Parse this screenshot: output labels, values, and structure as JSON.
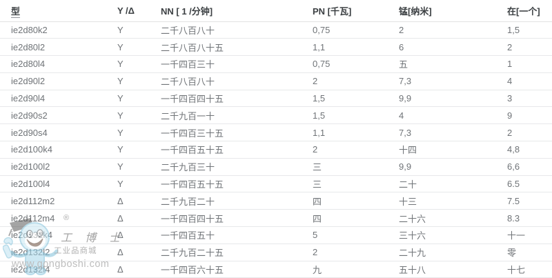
{
  "table": {
    "columns": [
      {
        "key": "model",
        "label": "型"
      },
      {
        "key": "wiring",
        "label": "Y /Δ"
      },
      {
        "key": "nn",
        "label": "NN [ 1 /分钟]"
      },
      {
        "key": "pn",
        "label": "PN [千瓦]"
      },
      {
        "key": "mn",
        "label": "锰[纳米]"
      },
      {
        "key": "at",
        "label": "在[一个]"
      }
    ],
    "rows": [
      {
        "model": "ie2d80k2",
        "wiring": "Y",
        "nn": "二千八百八十",
        "pn": "0,75",
        "mn": "2",
        "at": "1,5"
      },
      {
        "model": "ie2d80l2",
        "wiring": "Y",
        "nn": "二千八百八十五",
        "pn": "1,1",
        "mn": "6",
        "at": "2"
      },
      {
        "model": "ie2d80l4",
        "wiring": "Y",
        "nn": "一千四百三十",
        "pn": "0,75",
        "mn": "五",
        "at": "1"
      },
      {
        "model": "ie2d90l2",
        "wiring": "Y",
        "nn": "二千八百八十",
        "pn": "2",
        "mn": "7,3",
        "at": "4"
      },
      {
        "model": "ie2d90l4",
        "wiring": "Y",
        "nn": "一千四百四十五",
        "pn": "1,5",
        "mn": "9,9",
        "at": "3"
      },
      {
        "model": "ie2d90s2",
        "wiring": "Y",
        "nn": "二千九百一十",
        "pn": "1,5",
        "mn": "4",
        "at": "9"
      },
      {
        "model": "ie2d90s4",
        "wiring": "Y",
        "nn": "一千四百三十五",
        "pn": "1,1",
        "mn": "7,3",
        "at": "2"
      },
      {
        "model": "ie2d100k4",
        "wiring": "Y",
        "nn": "一千四百五十五",
        "pn": "2",
        "mn": "十四",
        "at": "4,8"
      },
      {
        "model": "ie2d100l2",
        "wiring": "Y",
        "nn": "二千九百三十",
        "pn": "三",
        "mn": "9,9",
        "at": "6,6"
      },
      {
        "model": "ie2d100l4",
        "wiring": "Y",
        "nn": "一千四百五十五",
        "pn": "三",
        "mn": "二十",
        "at": "6.5"
      },
      {
        "model": "ie2d112m2",
        "wiring": "Δ",
        "nn": "二千九百二十",
        "pn": "四",
        "mn": "十三",
        "at": "7.5"
      },
      {
        "model": "ie2d112m4",
        "wiring": "Δ",
        "nn": "一千四百四十五",
        "pn": "四",
        "mn": "二十六",
        "at": "8.3"
      },
      {
        "model": "ie2d132k4",
        "wiring": "Δ",
        "nn": "一千四百五十",
        "pn": "5",
        "mn": "三十六",
        "at": "十一"
      },
      {
        "model": "ie2d132l2",
        "wiring": "Δ",
        "nn": "二千九百二十五",
        "pn": "2",
        "mn": "二十九",
        "at": "零"
      },
      {
        "model": "ie2d132l4",
        "wiring": "Δ",
        "nn": "一千四百六十五",
        "pn": "九",
        "mn": "五十八",
        "at": "十七"
      }
    ]
  },
  "watermark": {
    "registered": "®",
    "brand_script": "工 博 士",
    "brand_sub": "工业品商城",
    "url": "www.gongboshi.com"
  },
  "colors": {
    "header_text": "#3c4043",
    "body_text": "#6f7377",
    "row_border": "#e7e8ea",
    "watermark_blue": "#7fc0da",
    "watermark_blue_light": "#c9e8f4",
    "watermark_gray_text": "#ababab"
  }
}
